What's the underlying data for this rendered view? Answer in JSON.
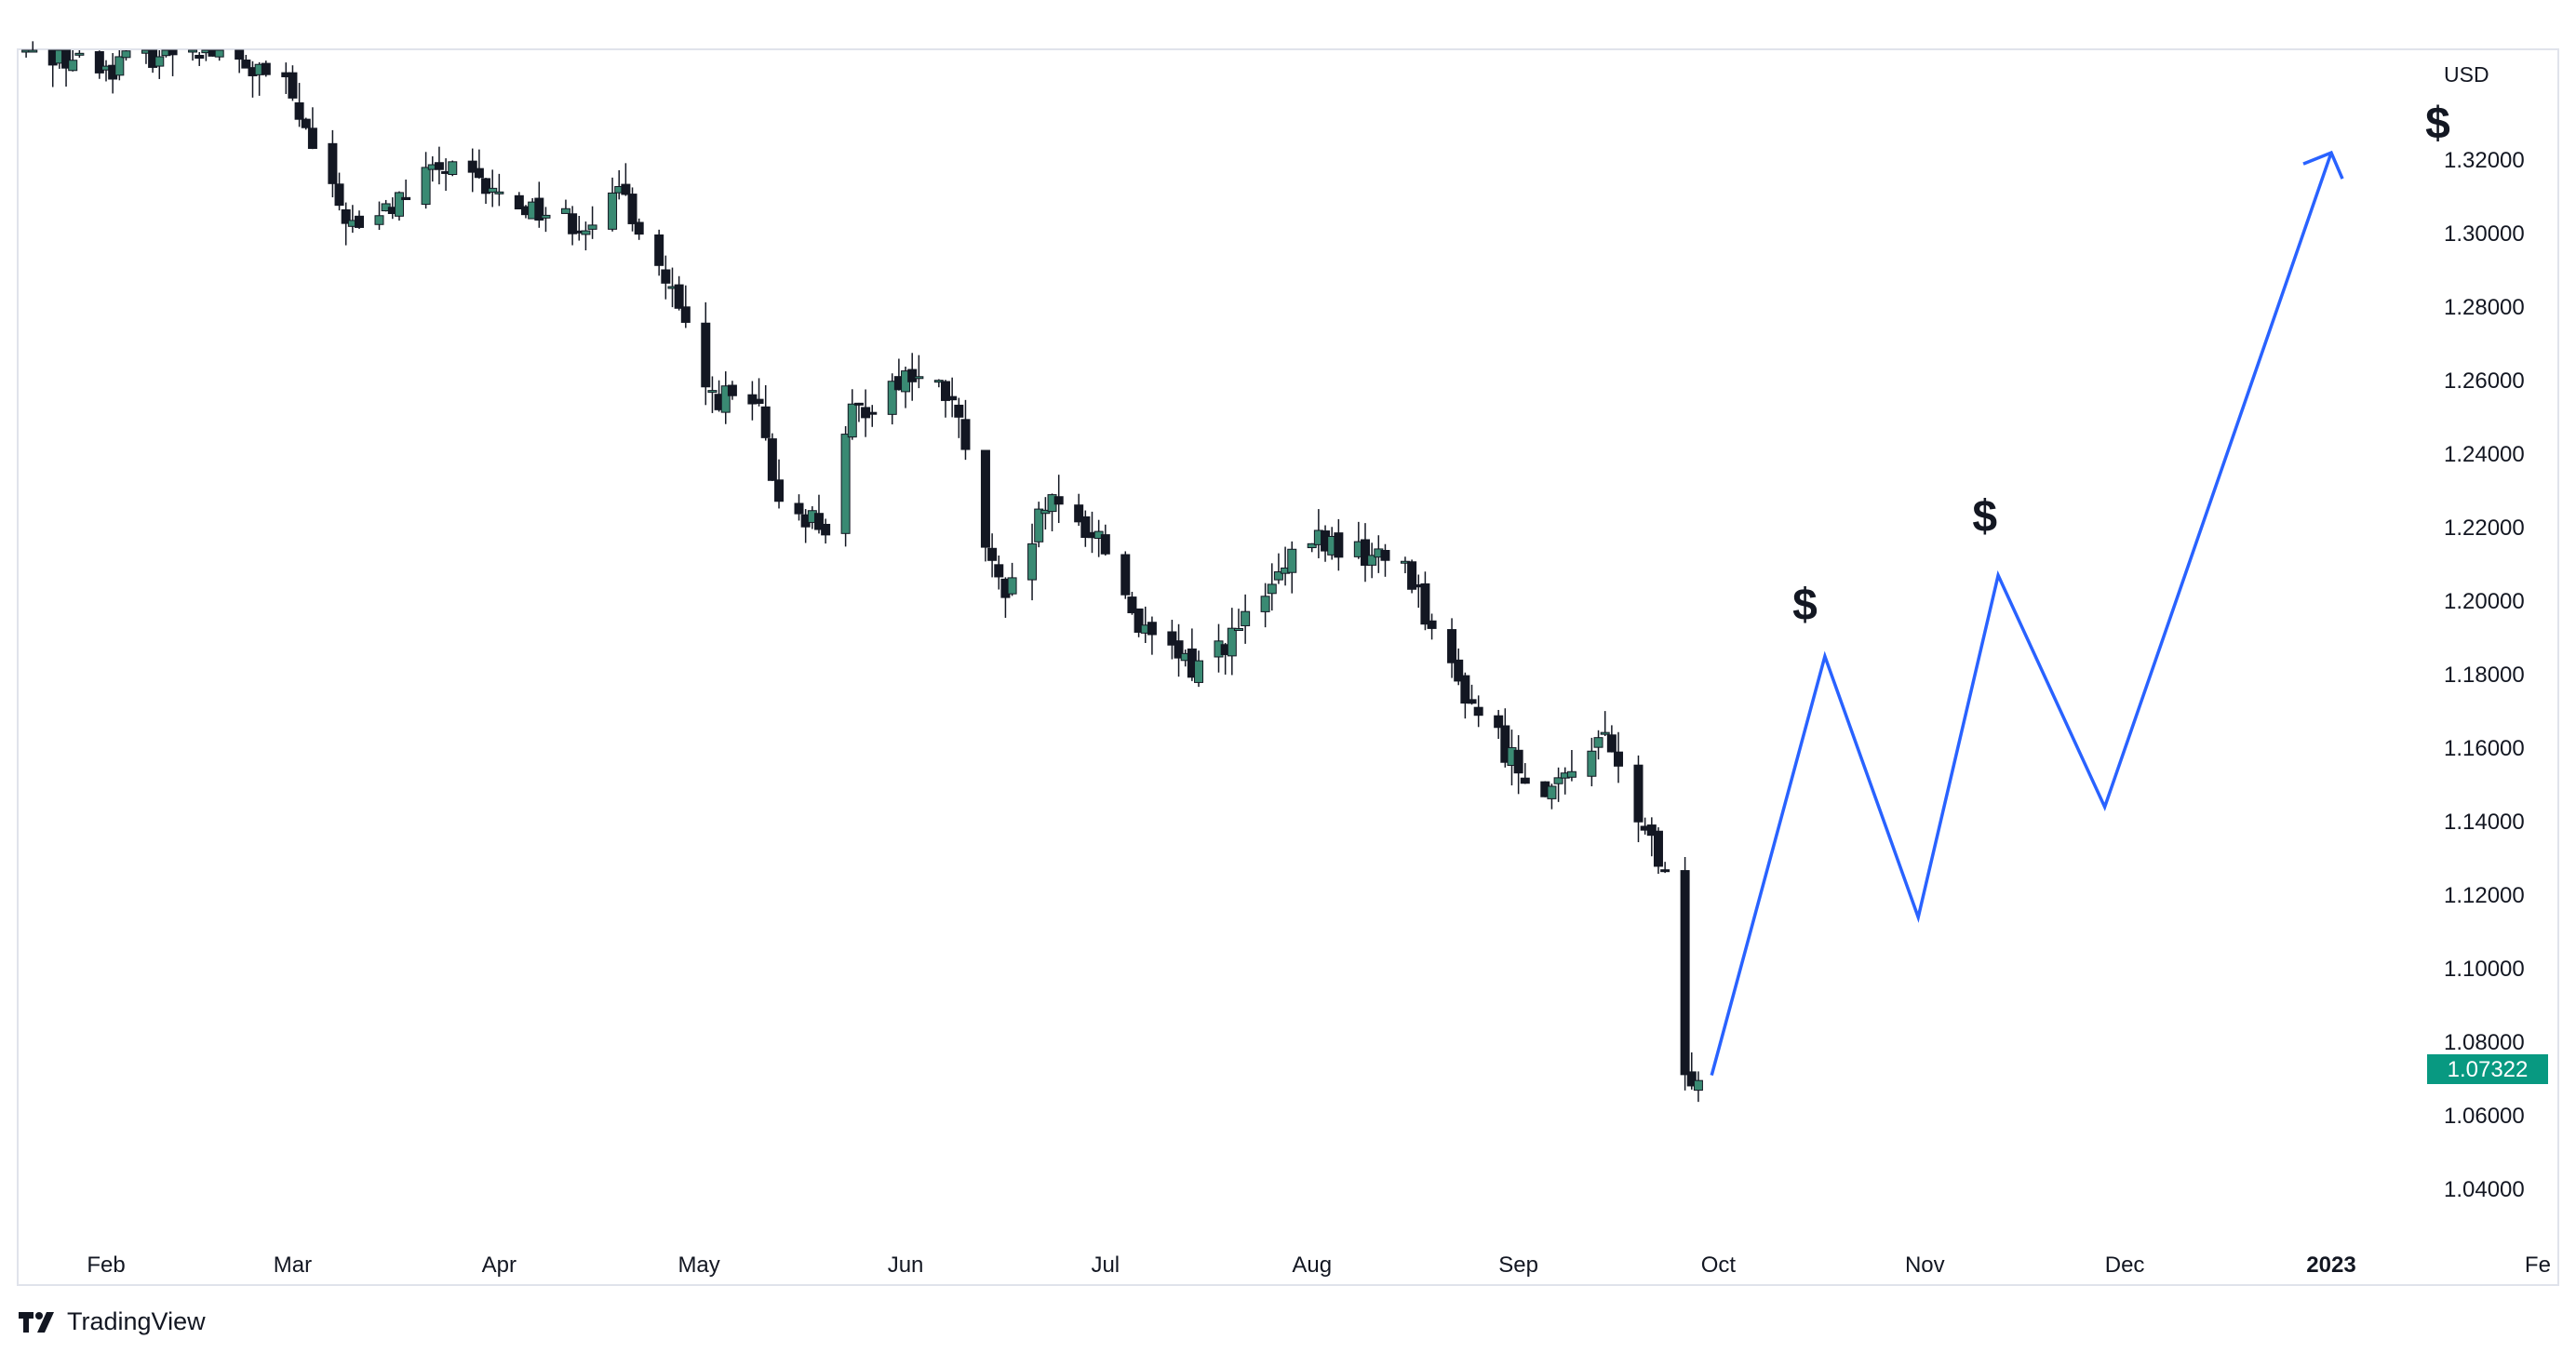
{
  "app": {
    "brand": "TradingView",
    "brand_icon": "tradingview-logo-icon"
  },
  "chart_data": {
    "type": "candlestick",
    "currency_label": "USD",
    "y_axis": {
      "ticks": [
        "1.04000",
        "1.06000",
        "1.08000",
        "1.10000",
        "1.12000",
        "1.14000",
        "1.16000",
        "1.18000",
        "1.20000",
        "1.22000",
        "1.24000",
        "1.26000",
        "1.28000",
        "1.30000",
        "1.32000"
      ],
      "range": [
        1.028,
        1.35
      ]
    },
    "x_axis": {
      "labels": [
        {
          "text": "Feb",
          "date": "2022-02-01",
          "bold": false
        },
        {
          "text": "Mar",
          "date": "2022-03-01",
          "bold": false
        },
        {
          "text": "Apr",
          "date": "2022-04-01",
          "bold": false
        },
        {
          "text": "May",
          "date": "2022-05-01",
          "bold": false
        },
        {
          "text": "Jun",
          "date": "2022-06-01",
          "bold": false
        },
        {
          "text": "Jul",
          "date": "2022-07-01",
          "bold": false
        },
        {
          "text": "Aug",
          "date": "2022-08-01",
          "bold": false
        },
        {
          "text": "Sep",
          "date": "2022-09-01",
          "bold": false
        },
        {
          "text": "Oct",
          "date": "2022-10-01",
          "bold": false
        },
        {
          "text": "Nov",
          "date": "2022-11-01",
          "bold": false
        },
        {
          "text": "Dec",
          "date": "2022-12-01",
          "bold": false
        },
        {
          "text": "2023",
          "date": "2023-01-01",
          "bold": true
        },
        {
          "text": "Fe",
          "date": "2023-02-01",
          "bold": false
        }
      ]
    },
    "current_price": "1.07322",
    "colors": {
      "up_candle": "#3a8a73",
      "down_candle": "#131722",
      "wick": "#131722",
      "projection": "#2962ff",
      "price_tag": "#089981"
    },
    "price_path": [
      {
        "date": "2022-01-20",
        "value": 1.352
      },
      {
        "date": "2022-01-31",
        "value": 1.345
      },
      {
        "date": "2022-02-14",
        "value": 1.352
      },
      {
        "date": "2022-02-28",
        "value": 1.34
      },
      {
        "date": "2022-03-07",
        "value": 1.31
      },
      {
        "date": "2022-03-11",
        "value": 1.3
      },
      {
        "date": "2022-03-23",
        "value": 1.318
      },
      {
        "date": "2022-04-01",
        "value": 1.31
      },
      {
        "date": "2022-04-13",
        "value": 1.303
      },
      {
        "date": "2022-04-20",
        "value": 1.31
      },
      {
        "date": "2022-04-27",
        "value": 1.283
      },
      {
        "date": "2022-05-02",
        "value": 1.257
      },
      {
        "date": "2022-05-10",
        "value": 1.252
      },
      {
        "date": "2022-05-12",
        "value": 1.23
      },
      {
        "date": "2022-05-20",
        "value": 1.22
      },
      {
        "date": "2022-05-24",
        "value": 1.25
      },
      {
        "date": "2022-06-01",
        "value": 1.262
      },
      {
        "date": "2022-06-08",
        "value": 1.255
      },
      {
        "date": "2022-06-13",
        "value": 1.215
      },
      {
        "date": "2022-06-16",
        "value": 1.198
      },
      {
        "date": "2022-06-22",
        "value": 1.226
      },
      {
        "date": "2022-06-30",
        "value": 1.218
      },
      {
        "date": "2022-07-07",
        "value": 1.19
      },
      {
        "date": "2022-07-14",
        "value": 1.182
      },
      {
        "date": "2022-07-21",
        "value": 1.192
      },
      {
        "date": "2022-08-01",
        "value": 1.217
      },
      {
        "date": "2022-08-10",
        "value": 1.212
      },
      {
        "date": "2022-08-15",
        "value": 1.211
      },
      {
        "date": "2022-08-22",
        "value": 1.18
      },
      {
        "date": "2022-09-01",
        "value": 1.155
      },
      {
        "date": "2022-09-07",
        "value": 1.148
      },
      {
        "date": "2022-09-13",
        "value": 1.165
      },
      {
        "date": "2022-09-20",
        "value": 1.138
      },
      {
        "date": "2022-09-23",
        "value": 1.123
      },
      {
        "date": "2022-09-26",
        "value": 1.069
      },
      {
        "date": "2022-09-28",
        "value": 1.073
      }
    ],
    "projection_path": [
      {
        "date": "2022-09-30",
        "value": 1.071
      },
      {
        "date": "2022-10-17",
        "value": 1.185
      },
      {
        "date": "2022-10-31",
        "value": 1.114
      },
      {
        "date": "2022-11-12",
        "value": 1.207
      },
      {
        "date": "2022-11-28",
        "value": 1.144
      },
      {
        "date": "2023-01-01",
        "value": 1.322
      }
    ],
    "annotations": [
      {
        "text": "$",
        "date": "2022-10-14",
        "value": 1.195
      },
      {
        "text": "$",
        "date": "2022-11-10",
        "value": 1.219
      },
      {
        "text": "$",
        "date": "2023-01-17",
        "value": 1.326
      }
    ]
  }
}
